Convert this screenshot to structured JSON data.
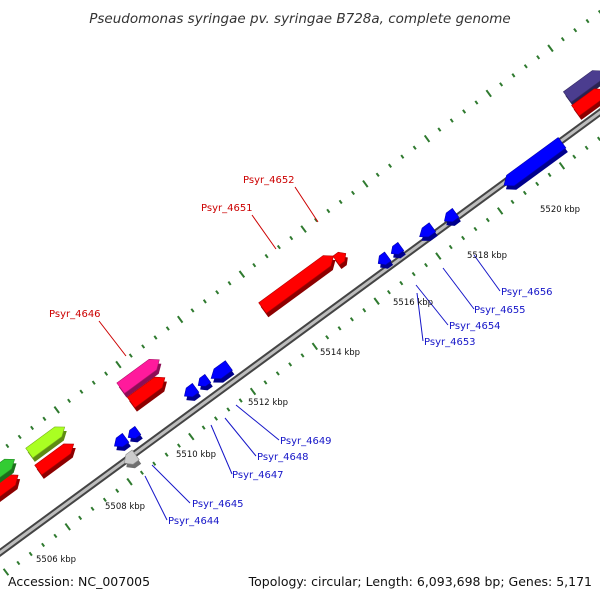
{
  "title": "Pseudomonas syringae pv. syringae B728a, complete genome",
  "footer": {
    "accession": "Accession: NC_007005",
    "topology": "Topology: circular; Length: 6,093,698 bp; Genes: 5,171"
  },
  "colors": {
    "forward_label": "#cc0000",
    "reverse_label": "#1515c8",
    "backbone": "#888888",
    "tick": "#2f7a2f"
  },
  "ticks": [
    "5506 kbp",
    "5508 kbp",
    "5510 kbp",
    "5512 kbp",
    "5514 kbp",
    "5516 kbp",
    "5518 kbp",
    "5520 kbp"
  ],
  "forward_labels": [
    "Psyr_4646",
    "Psyr_4651",
    "Psyr_4652"
  ],
  "reverse_labels": [
    "Psyr_4644",
    "Psyr_4645",
    "Psyr_4647",
    "Psyr_4648",
    "Psyr_4649",
    "Psyr_4653",
    "Psyr_4654",
    "Psyr_4655",
    "Psyr_4656"
  ],
  "gene_colors": {
    "red": "#ff0000",
    "blue": "#0000ff",
    "pink": "#ff1a9c",
    "green": "#33cc33",
    "lime": "#aaff22",
    "purple": "#4b3d8f",
    "gray": "#cccccc"
  }
}
